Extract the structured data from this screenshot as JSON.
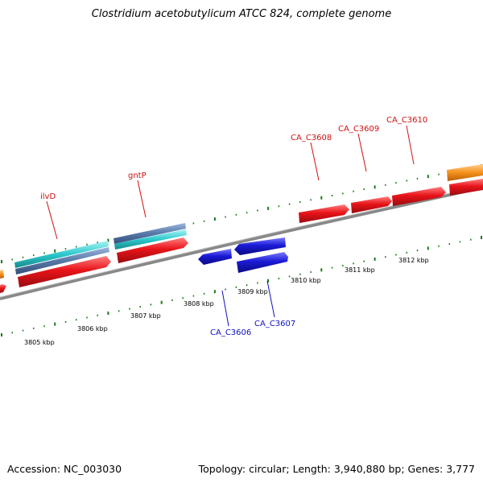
{
  "title": "Clostridium acetobutylicum ATCC 824, complete genome",
  "footer": {
    "accession": "Accession: NC_003030",
    "summary": "Topology: circular; Length: 3,940,880 bp; Genes: 3,777"
  },
  "colors": {
    "forward_gene": "#e8141a",
    "reverse_gene": "#1a1ad6",
    "rna_cyan": "#2cc8cc",
    "rna_steel": "#5878a8",
    "orange_feature": "#f5901a",
    "tick_green": "#1a7a1a",
    "backbone": "#888888",
    "forward_label": "#d01010",
    "reverse_label": "#1010c0"
  },
  "ruler": {
    "unit": "kbp",
    "ticks": [
      {
        "kbp": 3805,
        "label": "3805 kbp"
      },
      {
        "kbp": 3806,
        "label": "3806 kbp"
      },
      {
        "kbp": 3807,
        "label": "3807 kbp"
      },
      {
        "kbp": 3808,
        "label": "3808 kbp"
      },
      {
        "kbp": 3809,
        "label": "3809 kbp"
      },
      {
        "kbp": 3810,
        "label": "3810 kbp"
      },
      {
        "kbp": 3811,
        "label": "3811 kbp"
      },
      {
        "kbp": 3812,
        "label": "3812 kbp"
      }
    ]
  },
  "gene_labels": [
    {
      "name": "ilvD",
      "strand": "forward"
    },
    {
      "name": "gntP",
      "strand": "forward"
    },
    {
      "name": "CA_C3608",
      "strand": "forward"
    },
    {
      "name": "CA_C3609",
      "strand": "forward"
    },
    {
      "name": "CA_C3610",
      "strand": "forward"
    },
    {
      "name": "CA_C3606",
      "strand": "reverse"
    },
    {
      "name": "CA_C3607",
      "strand": "reverse"
    }
  ]
}
